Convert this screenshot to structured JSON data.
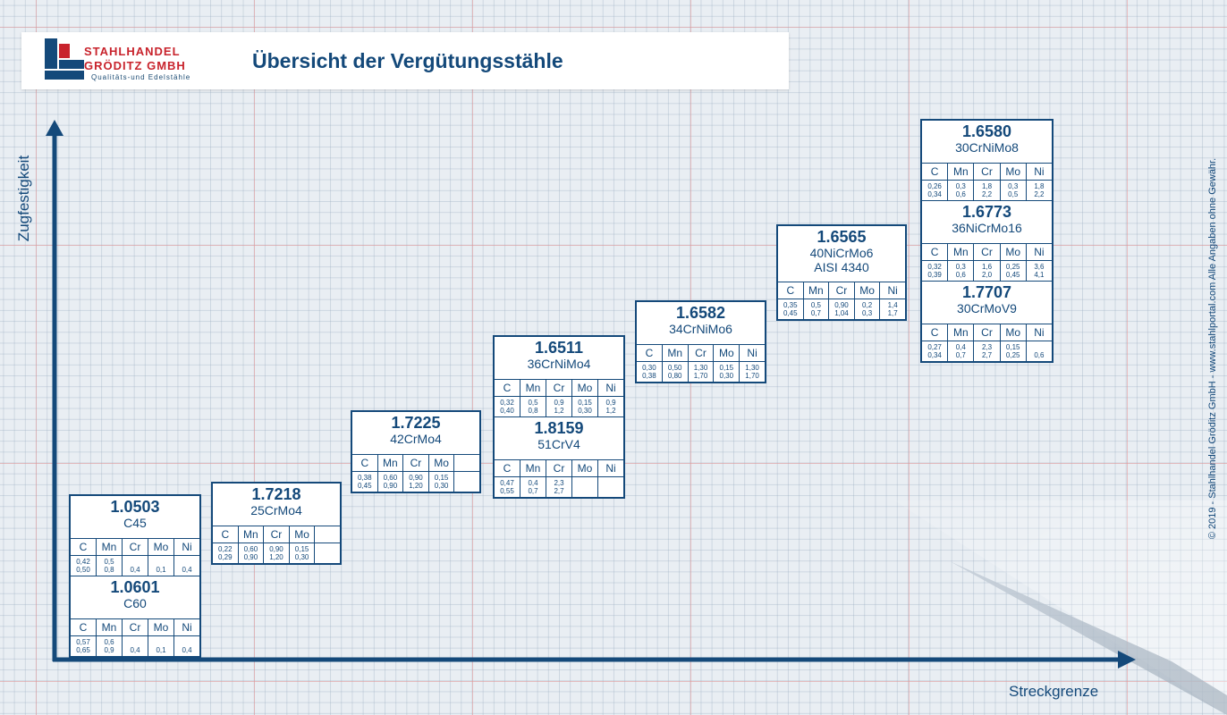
{
  "header": {
    "logo_line1": "STAHLHANDEL",
    "logo_line2": "GRÖDITZ GMBH",
    "logo_tagline": "Qualitäts-und Edelstähle",
    "title": "Übersicht der Vergütungsstähle"
  },
  "axes": {
    "y_label": "Zugfestigkeit",
    "x_label": "Streckgrenze"
  },
  "copyright": "© 2019 - Stahlhandel Gröditz GmbH - www.stahlportal.com     Alle Angaben ohne Gewähr.",
  "colors": {
    "brand_blue": "#14497a",
    "brand_red": "#c8232c",
    "card_bg": "#ffffff"
  },
  "cards": [
    {
      "materials": [
        {
          "number": "1.0503",
          "names": [
            "C45"
          ],
          "headers": [
            "C",
            "Mn",
            "Cr",
            "Mo",
            "Ni"
          ],
          "values": [
            [
              "0,42",
              "0,50"
            ],
            [
              "0,5",
              "0,8"
            ],
            [
              "",
              "0,4"
            ],
            [
              "",
              "0,1"
            ],
            [
              "",
              "0,4"
            ]
          ]
        },
        {
          "number": "1.0601",
          "names": [
            "C60"
          ],
          "headers": [
            "C",
            "Mn",
            "Cr",
            "Mo",
            "Ni"
          ],
          "values": [
            [
              "0,57",
              "0,65"
            ],
            [
              "0,6",
              "0,9"
            ],
            [
              "",
              "0,4"
            ],
            [
              "",
              "0,1"
            ],
            [
              "",
              "0,4"
            ]
          ]
        }
      ]
    },
    {
      "materials": [
        {
          "number": "1.7218",
          "names": [
            "25CrMo4"
          ],
          "headers": [
            "C",
            "Mn",
            "Cr",
            "Mo",
            ""
          ],
          "values": [
            [
              "0,22",
              "0,29"
            ],
            [
              "0,60",
              "0,90"
            ],
            [
              "0,90",
              "1,20"
            ],
            [
              "0,15",
              "0,30"
            ],
            [
              "",
              ""
            ]
          ]
        }
      ]
    },
    {
      "materials": [
        {
          "number": "1.7225",
          "names": [
            "42CrMo4"
          ],
          "headers": [
            "C",
            "Mn",
            "Cr",
            "Mo",
            ""
          ],
          "values": [
            [
              "0,38",
              "0,45"
            ],
            [
              "0,60",
              "0,90"
            ],
            [
              "0,90",
              "1,20"
            ],
            [
              "0,15",
              "0,30"
            ],
            [
              "",
              ""
            ]
          ]
        }
      ]
    },
    {
      "materials": [
        {
          "number": "1.6511",
          "names": [
            "36CrNiMo4"
          ],
          "headers": [
            "C",
            "Mn",
            "Cr",
            "Mo",
            "Ni"
          ],
          "values": [
            [
              "0,32",
              "0,40"
            ],
            [
              "0,5",
              "0,8"
            ],
            [
              "0,9",
              "1,2"
            ],
            [
              "0,15",
              "0,30"
            ],
            [
              "0,9",
              "1,2"
            ]
          ]
        },
        {
          "number": "1.8159",
          "names": [
            "51CrV4"
          ],
          "headers": [
            "C",
            "Mn",
            "Cr",
            "Mo",
            "Ni"
          ],
          "values": [
            [
              "0,47",
              "0,55"
            ],
            [
              "0,4",
              "0,7"
            ],
            [
              "2,3",
              "2,7"
            ],
            [
              "",
              ""
            ],
            [
              "",
              ""
            ]
          ]
        }
      ]
    },
    {
      "materials": [
        {
          "number": "1.6582",
          "names": [
            "34CrNiMo6"
          ],
          "headers": [
            "C",
            "Mn",
            "Cr",
            "Mo",
            "Ni"
          ],
          "values": [
            [
              "0,30",
              "0,38"
            ],
            [
              "0,50",
              "0,80"
            ],
            [
              "1,30",
              "1,70"
            ],
            [
              "0,15",
              "0,30"
            ],
            [
              "1,30",
              "1,70"
            ]
          ]
        }
      ]
    },
    {
      "materials": [
        {
          "number": "1.6565",
          "names": [
            "40NiCrMo6",
            "AISI 4340"
          ],
          "headers": [
            "C",
            "Mn",
            "Cr",
            "Mo",
            "Ni"
          ],
          "values": [
            [
              "0,35",
              "0,45"
            ],
            [
              "0,5",
              "0,7"
            ],
            [
              "0,90",
              "1,04"
            ],
            [
              "0,2",
              "0,3"
            ],
            [
              "1,4",
              "1,7"
            ]
          ]
        }
      ]
    },
    {
      "materials": [
        {
          "number": "1.6580",
          "names": [
            "30CrNiMo8"
          ],
          "headers": [
            "C",
            "Mn",
            "Cr",
            "Mo",
            "Ni"
          ],
          "values": [
            [
              "0,26",
              "0,34"
            ],
            [
              "0,3",
              "0,6"
            ],
            [
              "1,8",
              "2,2"
            ],
            [
              "0,3",
              "0,5"
            ],
            [
              "1,8",
              "2,2"
            ]
          ]
        },
        {
          "number": "1.6773",
          "names": [
            "36NiCrMo16"
          ],
          "headers": [
            "C",
            "Mn",
            "Cr",
            "Mo",
            "Ni"
          ],
          "values": [
            [
              "0,32",
              "0,39"
            ],
            [
              "0,3",
              "0,6"
            ],
            [
              "1,6",
              "2,0"
            ],
            [
              "0,25",
              "0,45"
            ],
            [
              "3,6",
              "4,1"
            ]
          ]
        },
        {
          "number": "1.7707",
          "names": [
            "30CrMoV9"
          ],
          "headers": [
            "C",
            "Mn",
            "Cr",
            "Mo",
            "Ni"
          ],
          "values": [
            [
              "0,27",
              "0,34"
            ],
            [
              "0,4",
              "0,7"
            ],
            [
              "2,3",
              "2,7"
            ],
            [
              "0,15",
              "0,25"
            ],
            [
              "",
              "0,6"
            ]
          ]
        }
      ]
    }
  ]
}
